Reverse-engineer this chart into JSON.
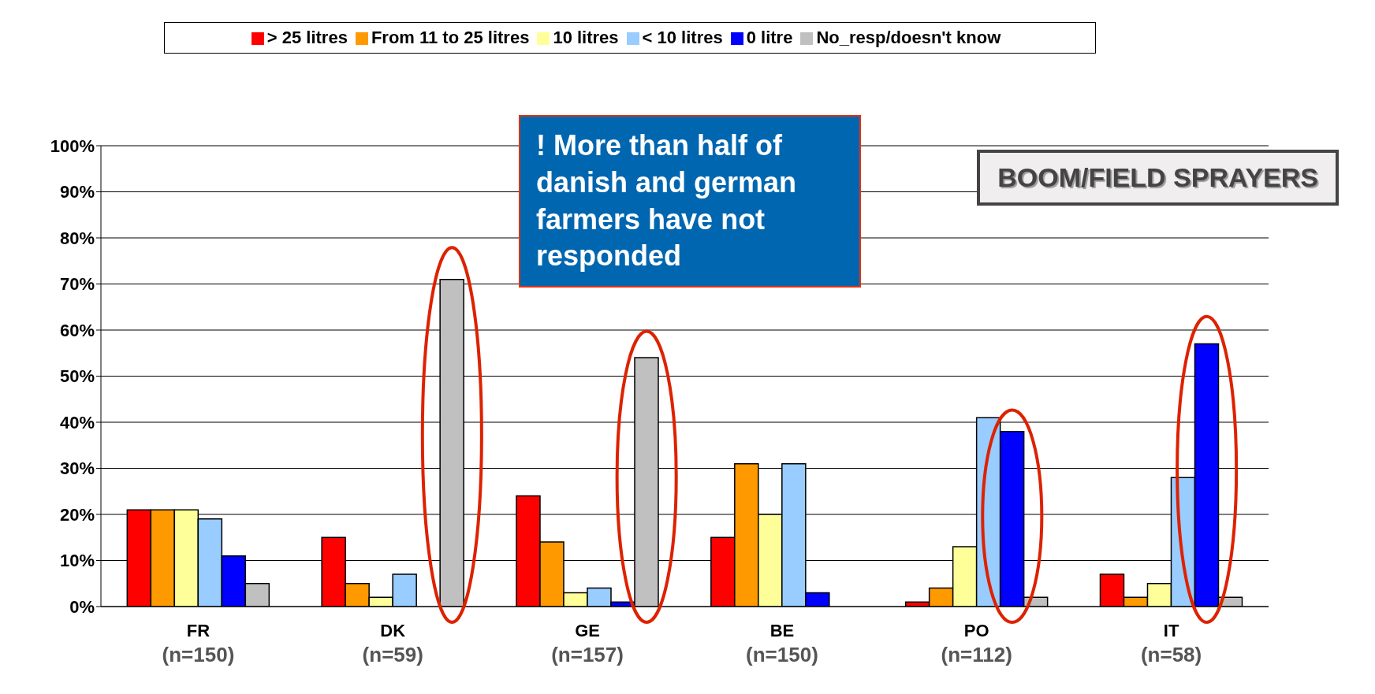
{
  "chart_data": {
    "type": "bar",
    "title": "BOOM/FIELD SPRAYERS",
    "annotations": [
      "! More than half of danish and german farmers have not responded"
    ],
    "categories": [
      "FR\n(n=150)",
      "DK\n(n=59)",
      "GE\n(n=157)",
      "BE\n(n=150)",
      "PO\n(n=112)",
      "IT\n(n=58)"
    ],
    "series": [
      {
        "name": "> 25 litres",
        "color": "#ff0000",
        "values": [
          21,
          15,
          24,
          15,
          1,
          7
        ]
      },
      {
        "name": "From 11 to 25 litres",
        "color": "#ff9900",
        "values": [
          21,
          5,
          14,
          31,
          4,
          2
        ]
      },
      {
        "name": "10 litres",
        "color": "#ffff99",
        "values": [
          21,
          2,
          3,
          20,
          13,
          5
        ]
      },
      {
        "name": "< 10 litres",
        "color": "#99ccff",
        "values": [
          19,
          7,
          4,
          31,
          41,
          28
        ]
      },
      {
        "name": "0 litre",
        "color": "#0000ff",
        "values": [
          11,
          0,
          1,
          3,
          38,
          57
        ]
      },
      {
        "name": "No_resp/doesn't know",
        "color": "#c0c0c0",
        "values": [
          5,
          71,
          54,
          0,
          2,
          2
        ]
      }
    ],
    "ylim": [
      0,
      100
    ],
    "yticks": [
      {
        "value": 0,
        "label": "0%"
      },
      {
        "value": 10,
        "label": "10%"
      },
      {
        "value": 20,
        "label": "20%"
      },
      {
        "value": 30,
        "label": "30%"
      },
      {
        "value": 40,
        "label": "40%"
      },
      {
        "value": 50,
        "label": "50%"
      },
      {
        "value": 60,
        "label": "60%"
      },
      {
        "value": 70,
        "label": "70%"
      },
      {
        "value": 80,
        "label": "80%"
      },
      {
        "value": 90,
        "label": "90%"
      },
      {
        "value": 100,
        "label": "100%"
      }
    ],
    "grid": "y",
    "legend": "top"
  }
}
